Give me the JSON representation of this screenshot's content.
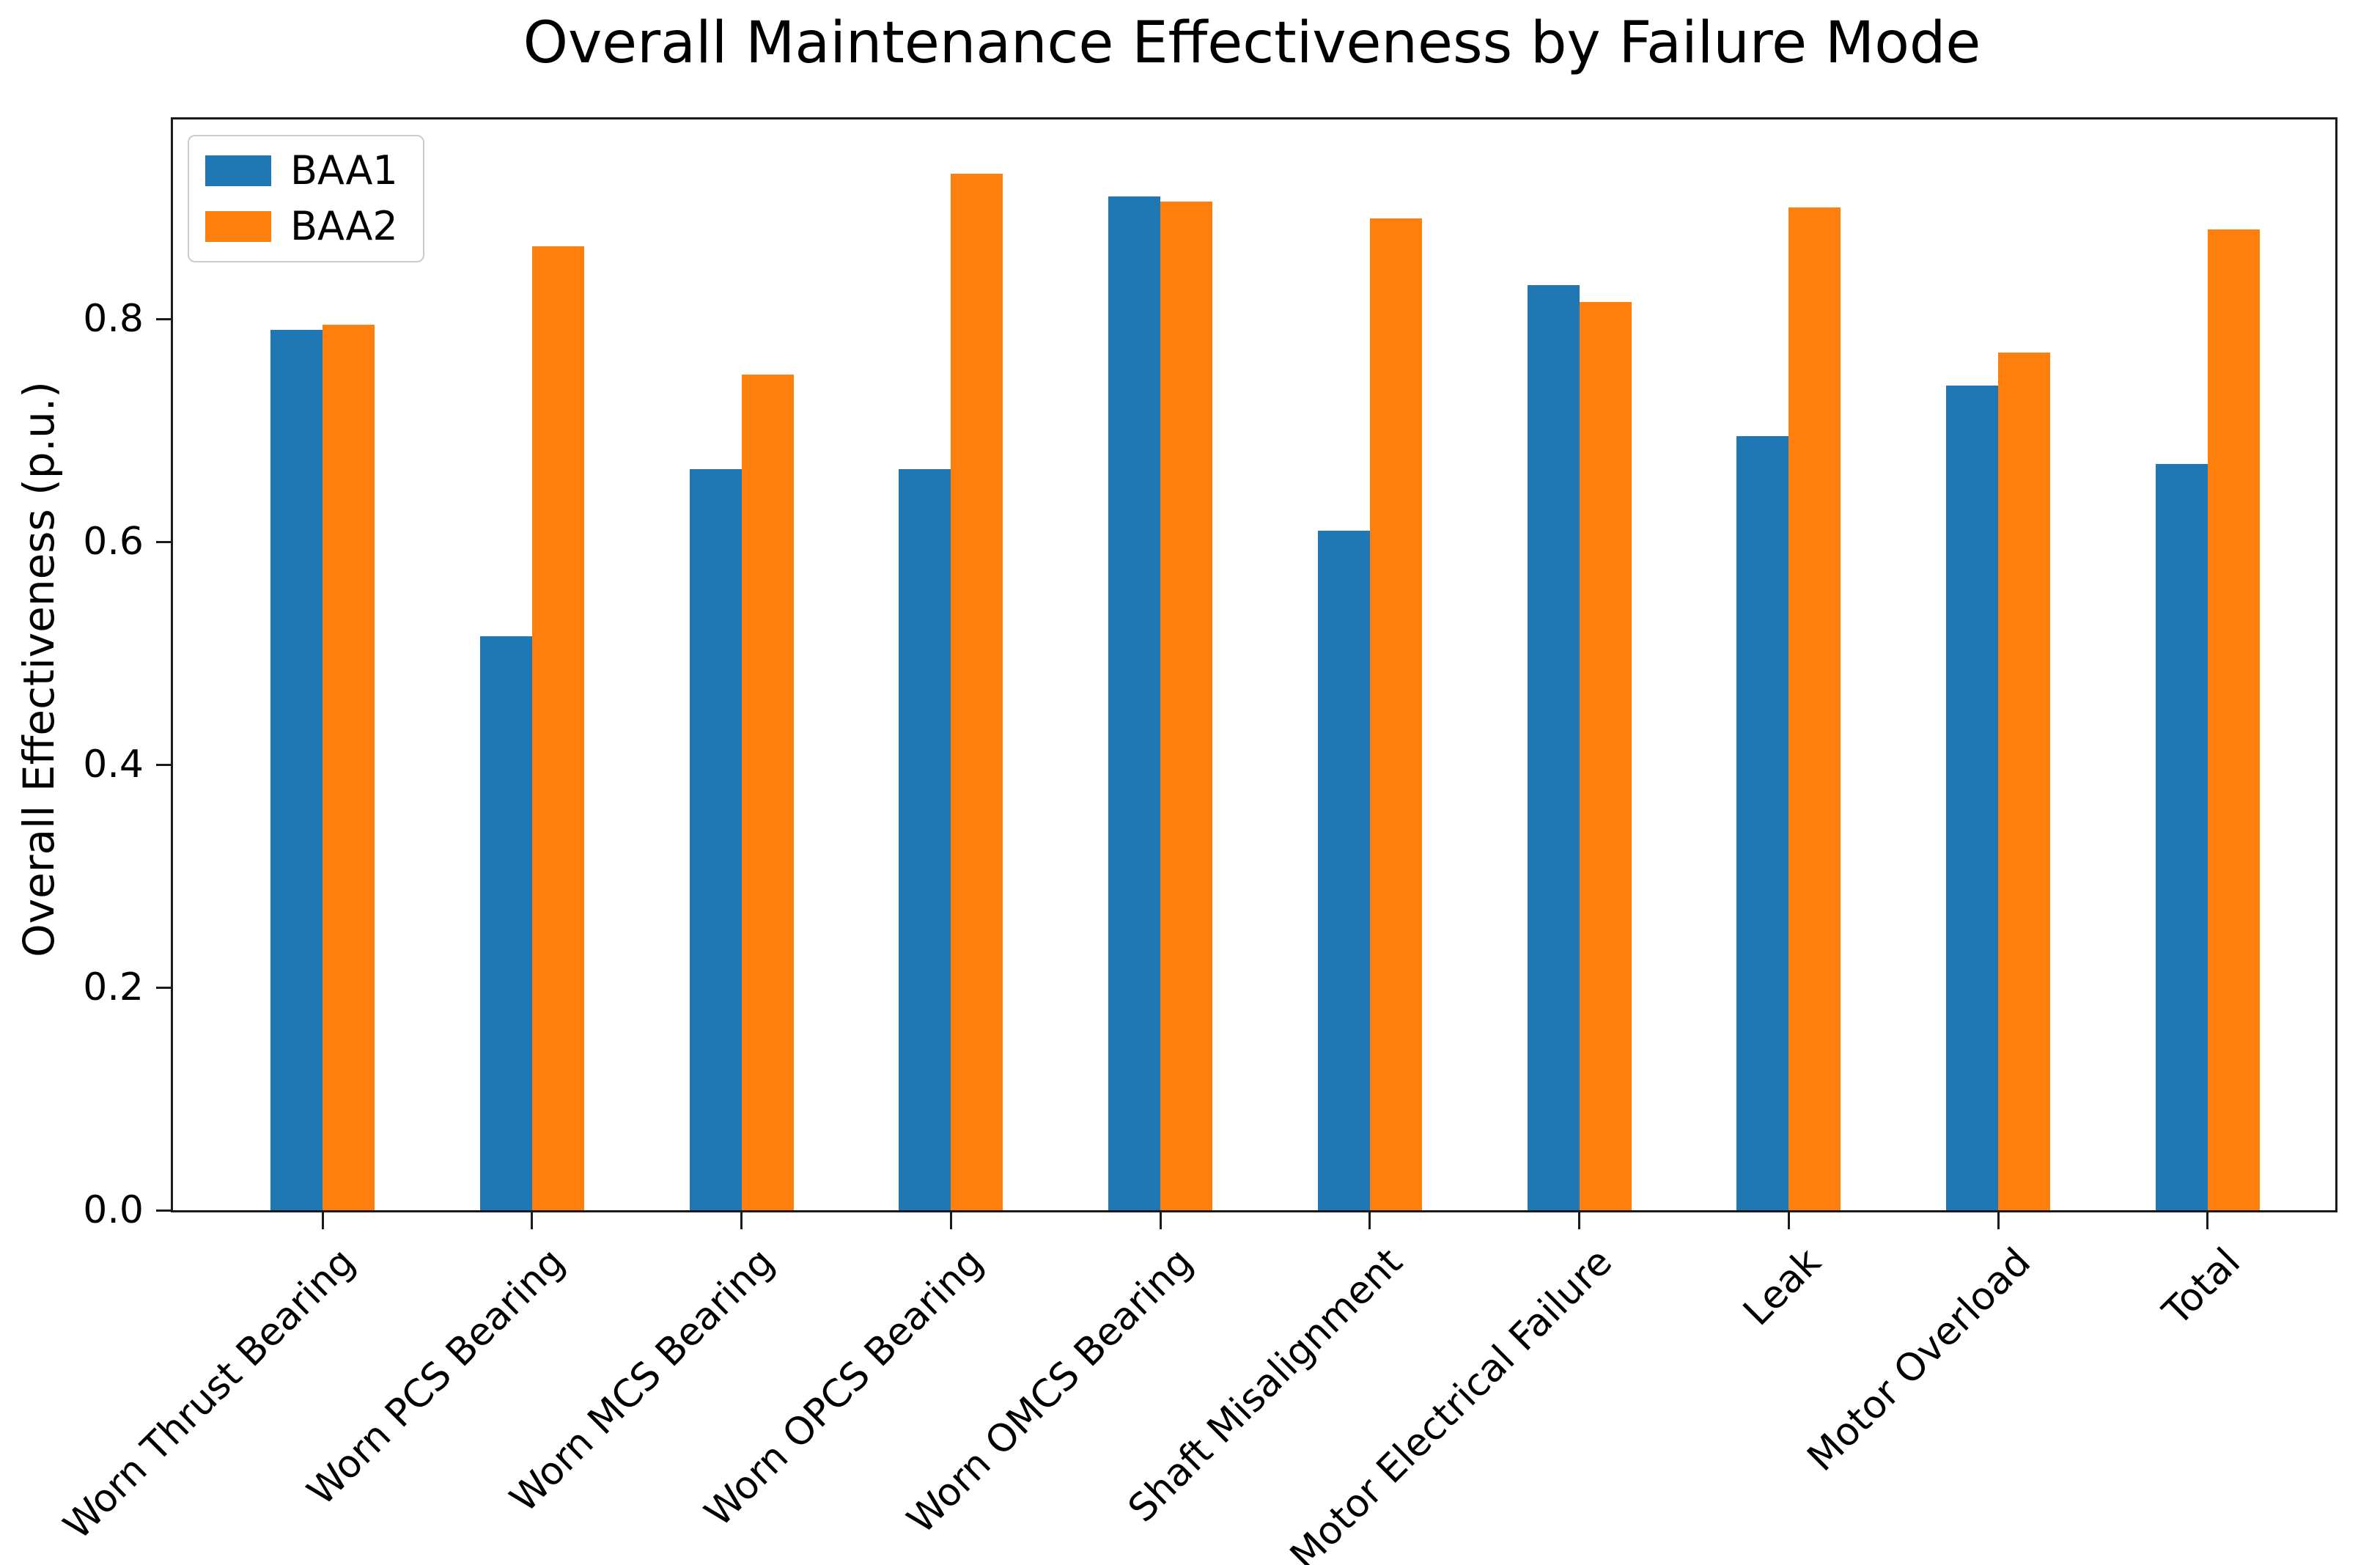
{
  "title": "Overall Maintenance Effectiveness by Failure Mode",
  "chart_data": {
    "type": "bar",
    "title": "Overall Maintenance Effectiveness by Failure Mode",
    "xlabel": "",
    "ylabel": "Overall Effectiveness (p.u.)",
    "categories": [
      "Worn Thrust Bearing",
      "Worn PCS Bearing",
      "Worn MCS Bearing",
      "Worn OPCS Bearing",
      "Worn OMCS Bearing",
      "Shaft Misalignment",
      "Motor Electrical Failure",
      "Leak",
      "Motor Overload",
      "Total"
    ],
    "series": [
      {
        "name": "BAA1",
        "color": "#1f77b4",
        "values": [
          0.79,
          0.515,
          0.665,
          0.665,
          0.91,
          0.61,
          0.83,
          0.695,
          0.74,
          0.67
        ]
      },
      {
        "name": "BAA2",
        "color": "#ff7f0e",
        "values": [
          0.795,
          0.865,
          0.75,
          0.93,
          0.905,
          0.89,
          0.815,
          0.9,
          0.77,
          0.88
        ]
      }
    ],
    "ytick_labels": [
      "0.0",
      "0.2",
      "0.4",
      "0.6",
      "0.8"
    ],
    "yticks": [
      0.0,
      0.2,
      0.4,
      0.6,
      0.8
    ],
    "ylim": [
      0,
      0.979
    ],
    "grid": false,
    "legend_position": "upper left",
    "x_tick_rotation_deg": 45,
    "axis_color": "#1a1a1a",
    "background_color": "#ffffff"
  },
  "legend": {
    "items": [
      {
        "label": "BAA1"
      },
      {
        "label": "BAA2"
      }
    ]
  }
}
